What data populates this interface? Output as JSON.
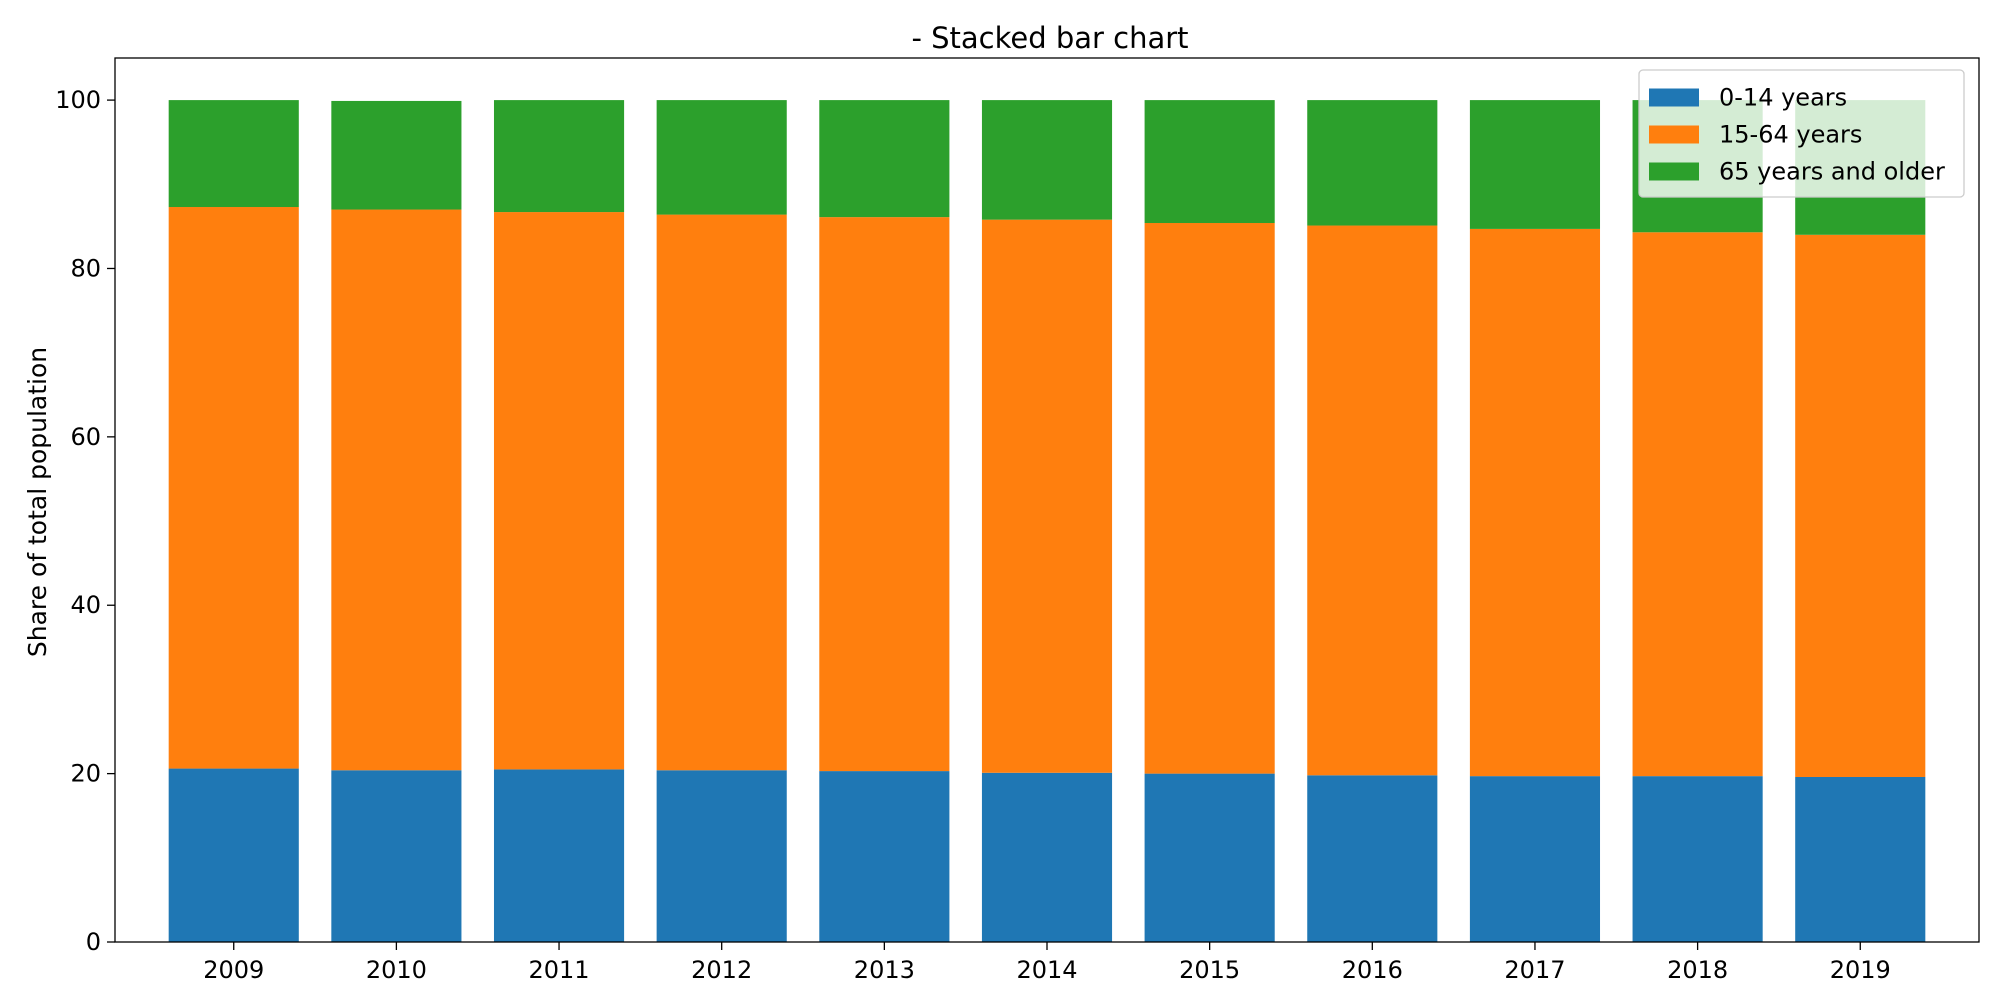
{
  "chart_data": {
    "type": "bar",
    "stacked": true,
    "title": "- Stacked bar chart",
    "xlabel": "",
    "ylabel": "Share of total population",
    "categories": [
      "2009",
      "2010",
      "2011",
      "2012",
      "2013",
      "2014",
      "2015",
      "2016",
      "2017",
      "2018",
      "2019"
    ],
    "series": [
      {
        "name": "0-14 years",
        "color": "#1f77b4",
        "values": [
          20.6,
          20.4,
          20.5,
          20.4,
          20.3,
          20.1,
          20.0,
          19.8,
          19.7,
          19.7,
          19.6
        ]
      },
      {
        "name": "15-64 years",
        "color": "#ff7f0e",
        "values": [
          66.7,
          66.6,
          66.2,
          66.0,
          65.8,
          65.7,
          65.4,
          65.3,
          65.0,
          64.6,
          64.4
        ]
      },
      {
        "name": "65 years and older",
        "color": "#2ca02c",
        "values": [
          12.7,
          12.9,
          13.3,
          13.6,
          13.9,
          14.2,
          14.6,
          14.9,
          15.3,
          15.7,
          16.0
        ]
      }
    ],
    "ylim": [
      0,
      105
    ],
    "yticks": [
      0,
      20,
      40,
      60,
      80,
      100
    ],
    "grid": false,
    "legend_position": "top-right"
  }
}
